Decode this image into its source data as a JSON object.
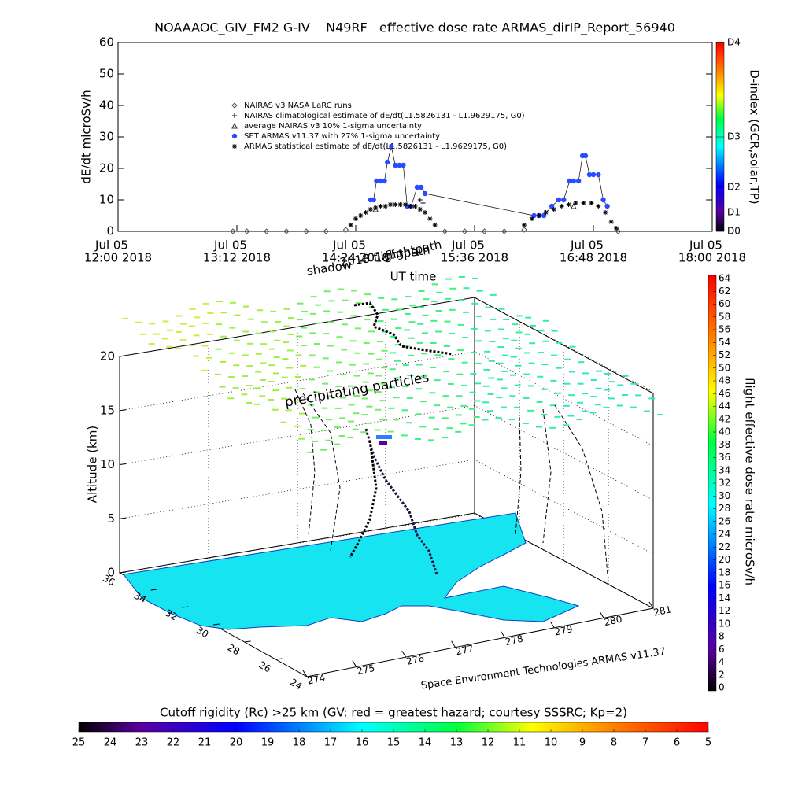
{
  "chart_data": {
    "type": "scatter",
    "title": "NOAAAOC_GIV_FM2 G-IV    N49RF   effective dose rate ARMAS_dirIP_Report_56940",
    "xlabel": "UT time",
    "ylabel": "dE/dt microSv/h",
    "xlim": [
      12,
      18
    ],
    "xticks": [
      {
        "value": 12,
        "label": "Jul 05"
      },
      {
        "value": 13.2,
        "label": "Jul 05"
      },
      {
        "value": 14.4,
        "label": "Jul 05"
      },
      {
        "value": 15.6,
        "label": "Jul 05"
      },
      {
        "value": 16.8,
        "label": "Jul 05"
      },
      {
        "value": 18,
        "label": "Jul 05"
      }
    ],
    "xtick_sublabels": [
      "12:00 2018",
      "13:12 2018",
      "14:24 2018",
      "15:36 2018",
      "16:48 2018",
      "18:00 2018"
    ],
    "ylim": [
      0,
      60
    ],
    "yticks": [
      0,
      10,
      20,
      30,
      40,
      50,
      60
    ],
    "y2label": "D-index (GCR,solar,TP)",
    "y2lim": [
      0,
      60
    ],
    "y2ticks": [
      {
        "value": 0,
        "label": "D0"
      },
      {
        "value": 6,
        "label": "D1"
      },
      {
        "value": 14,
        "label": "D2"
      },
      {
        "value": 30,
        "label": "D3"
      },
      {
        "value": 60,
        "label": "D4"
      }
    ],
    "series": [
      {
        "name": "NAIRAS v3 NASA LaRC runs",
        "color": "#555555",
        "marker": "diamond",
        "x": [
          13.16,
          13.3,
          13.5,
          13.7,
          13.9,
          14.1,
          14.3,
          15.3,
          15.5,
          15.7,
          15.9,
          16.1,
          17.05
        ],
        "values": [
          0,
          0,
          0,
          0,
          0,
          0,
          0.5,
          0,
          0,
          0,
          0,
          0.5,
          0
        ]
      },
      {
        "name": "NAIRAS climatological estimate of dE/dt(L1.5826131 - L1.9629175, G0)",
        "color": "#000000",
        "marker": "plus",
        "x": [
          15.05,
          15.08
        ],
        "values": [
          10,
          9
        ]
      },
      {
        "name": "average NAIRAS v3 10% 1-sigma uncertainty",
        "color": "#333333",
        "marker": "triangle",
        "x": [
          14.6,
          16.6
        ],
        "values": [
          7,
          8
        ]
      },
      {
        "name": "SET ARMAS v11.37 with 27% 1-sigma uncertainty",
        "color": "#2a4cff",
        "marker": "circle",
        "line": true,
        "x": [
          14.55,
          14.58,
          14.61,
          14.65,
          14.69,
          14.72,
          14.76,
          14.8,
          14.84,
          14.88,
          14.92,
          14.96,
          15.02,
          15.06,
          15.1,
          16.2,
          16.25,
          16.3,
          16.38,
          16.45,
          16.5,
          16.56,
          16.6,
          16.65,
          16.69,
          16.72,
          16.76,
          16.8,
          16.85,
          16.9,
          16.94
        ],
        "values": [
          10,
          10,
          16,
          16,
          16,
          22,
          27,
          21,
          21,
          21,
          8,
          8,
          14,
          14,
          12,
          5,
          5,
          5,
          8,
          10,
          10,
          16,
          16,
          16,
          24,
          24,
          18,
          18,
          18,
          10,
          8
        ]
      },
      {
        "name": "ARMAS statistical estimate of dE/dt(L1.5826131 - L1.9629175, G0)",
        "color": "#000000",
        "marker": "asterisk",
        "x": [
          14.35,
          14.4,
          14.45,
          14.5,
          14.55,
          14.6,
          14.65,
          14.7,
          14.75,
          14.8,
          14.85,
          14.9,
          14.95,
          15.0,
          15.05,
          15.1,
          15.15,
          15.2,
          16.1,
          16.18,
          16.25,
          16.32,
          16.4,
          16.48,
          16.55,
          16.62,
          16.7,
          16.78,
          16.85,
          16.92,
          16.98,
          17.03
        ],
        "values": [
          2,
          4,
          5,
          6,
          7,
          7.5,
          8,
          8,
          8.5,
          8.5,
          8.5,
          8.5,
          8,
          8,
          7,
          6,
          4,
          2,
          2,
          4,
          5,
          6,
          7,
          8,
          8.5,
          9,
          9,
          9,
          8,
          6,
          3,
          1
        ]
      }
    ]
  },
  "view3d": {
    "annotations": [
      "shadow",
      "2018 flightpath",
      "flightpath",
      "precipitating particles"
    ],
    "zlabel": "Altitude (km)",
    "zlim": [
      0,
      20
    ],
    "zticks": [
      0,
      5,
      10,
      15,
      20
    ],
    "latlim": [
      36,
      24
    ],
    "latticks": [
      36,
      34,
      32,
      30,
      28,
      26,
      24
    ],
    "lonlim": [
      274,
      281
    ],
    "lonticks": [
      274,
      275,
      276,
      277,
      278,
      279,
      280,
      281
    ],
    "credit": "Space Environment Technologies ARMAS v11.37"
  },
  "colorbar_dose": {
    "label": "flight effective dose rate microSv/h",
    "clim": [
      0,
      64
    ],
    "ticks": [
      0,
      2,
      4,
      6,
      8,
      10,
      12,
      14,
      16,
      18,
      20,
      22,
      24,
      26,
      28,
      30,
      32,
      34,
      36,
      38,
      40,
      42,
      44,
      46,
      48,
      50,
      52,
      54,
      56,
      58,
      60,
      62,
      64
    ]
  },
  "colorbar_rc": {
    "label": "Cutoff rigidity (Rc) >25 km (GV: red = greatest hazard; courtesy SSSRC; Kp=2)",
    "clim": [
      25,
      5
    ],
    "ticks": [
      25,
      24,
      23,
      22,
      21,
      20,
      19,
      18,
      17,
      16,
      15,
      14,
      13,
      12,
      11,
      10,
      9,
      8,
      7,
      6,
      5
    ]
  }
}
